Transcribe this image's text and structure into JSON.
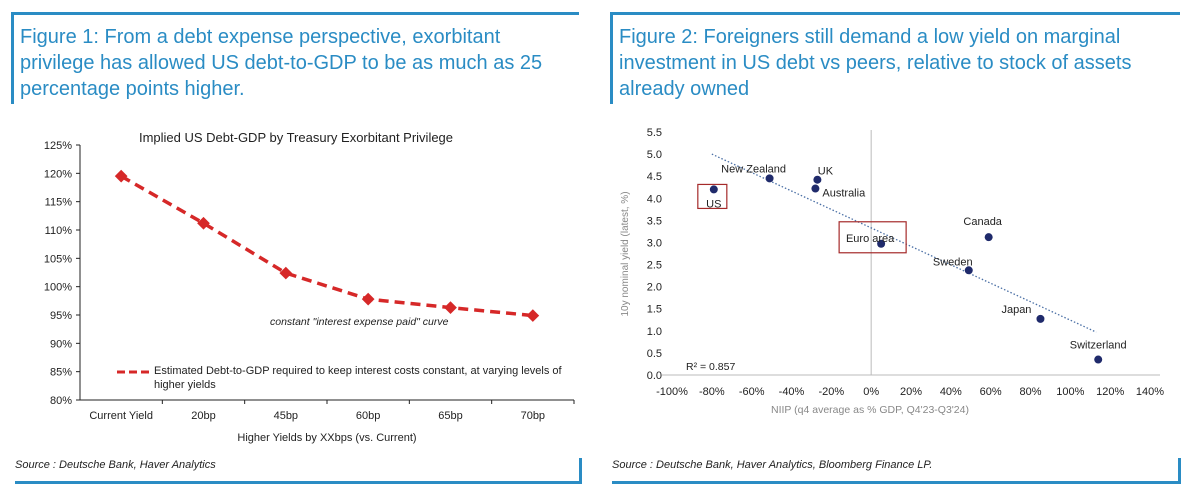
{
  "figure1": {
    "title": "Figure 1: From a debt expense perspective, exorbitant privilege has allowed US debt-to-GDP to be as much as 25 percentage points higher.",
    "source": "Source : Deutsche Bank, Haver Analytics"
  },
  "figure2": {
    "title": "Figure 2: Foreigners still demand a low yield on marginal investment in US debt vs peers, relative to stock of assets already owned",
    "source": "Source : Deutsche Bank, Haver Analytics, Bloomberg Finance LP."
  },
  "colors": {
    "accent": "#2a8cc4",
    "series1": "#d62828",
    "points": "#1f2a6b",
    "box": "#a52a2a"
  },
  "chart_data": [
    {
      "type": "line",
      "title": "Implied US Debt-GDP by Treasury Exorbitant Privilege",
      "xlabel": "Higher Yields by XXbps (vs. Current)",
      "ylabel": "",
      "categories": [
        "Current Yield",
        "20bp",
        "45bp",
        "60bp",
        "65bp",
        "70bp"
      ],
      "series": [
        {
          "name": "Estimated Debt-to-GDP required to keep interest costs constant, at varying levels of higher yields",
          "values": [
            119.5,
            111.2,
            102.4,
            97.8,
            96.3,
            94.9
          ]
        }
      ],
      "ylim": [
        80,
        125
      ],
      "yticks": [
        "80%",
        "85%",
        "90%",
        "95%",
        "100%",
        "105%",
        "110%",
        "115%",
        "120%",
        "125%"
      ],
      "annotation": "constant \"interest expense paid\" curve",
      "legend": "bottom-inside"
    },
    {
      "type": "scatter",
      "xlabel": "NIIP (q4 average as % GDP, Q4'23-Q3'24)",
      "ylabel": "10y nominal yield (latest, %)",
      "xlim": [
        -100,
        140
      ],
      "ylim": [
        0,
        5.5
      ],
      "xticks": [
        "-100%",
        "-80%",
        "-60%",
        "-40%",
        "-20%",
        "0%",
        "20%",
        "40%",
        "60%",
        "80%",
        "100%",
        "120%",
        "140%"
      ],
      "yticks": [
        "0.0",
        "0.5",
        "1.0",
        "1.5",
        "2.0",
        "2.5",
        "3.0",
        "3.5",
        "4.0",
        "4.5",
        "5.0",
        "5.5"
      ],
      "points": [
        {
          "label": "US",
          "x": -79,
          "y": 4.2,
          "boxed": true
        },
        {
          "label": "New Zealand",
          "x": -51,
          "y": 4.45
        },
        {
          "label": "UK",
          "x": -27,
          "y": 4.42
        },
        {
          "label": "Australia",
          "x": -28,
          "y": 4.22
        },
        {
          "label": "Euro area",
          "x": 5,
          "y": 2.97,
          "boxed": true
        },
        {
          "label": "Canada",
          "x": 59,
          "y": 3.12
        },
        {
          "label": "Sweden",
          "x": 49,
          "y": 2.37
        },
        {
          "label": "Japan",
          "x": 85,
          "y": 1.27
        },
        {
          "label": "Switzerland",
          "x": 114,
          "y": 0.35
        }
      ],
      "trendline": {
        "x": [
          -80,
          113
        ],
        "y": [
          5.0,
          0.97
        ]
      },
      "r_squared": "R² = 0.857"
    }
  ]
}
